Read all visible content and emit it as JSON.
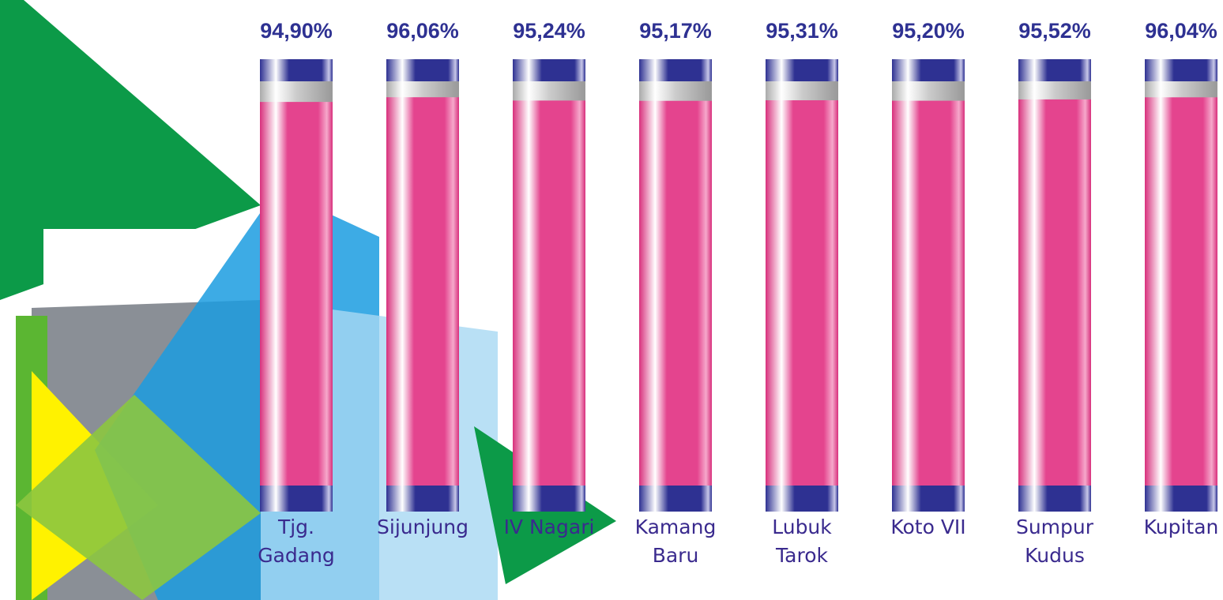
{
  "chart_data": {
    "type": "cylinder-bar",
    "categories": [
      "Tjg. Gadang",
      "Sijunjung",
      "IV Nagari",
      "Kamang Baru",
      "Lubuk Tarok",
      "Koto VII",
      "Sumpur Kudus",
      "Kupitan"
    ],
    "values": [
      94.9,
      96.06,
      95.24,
      95.17,
      95.31,
      95.2,
      95.52,
      96.04
    ],
    "value_labels": [
      "94,90%",
      "96,06%",
      "95,24%",
      "95,17%",
      "95,31%",
      "95,20%",
      "95,52%",
      "96,04%"
    ],
    "color": "#e4448e",
    "ylim": [
      0,
      100
    ]
  }
}
